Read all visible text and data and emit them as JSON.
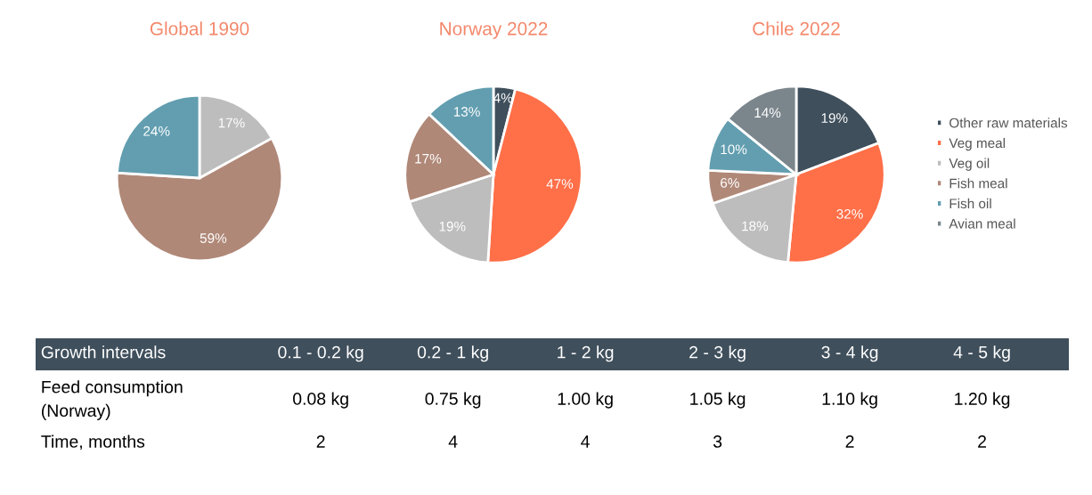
{
  "chart_data": [
    {
      "type": "pie",
      "title": "Global 1990",
      "categories": [
        null,
        null,
        null
      ],
      "values": [
        17,
        59,
        24
      ],
      "colors": [
        "#bdbdbd",
        "#b08878",
        "#629eb0"
      ],
      "value_labels": [
        "17%",
        "59%",
        "24%"
      ]
    },
    {
      "type": "pie",
      "title": "Norway 2022",
      "categories": [
        null,
        null,
        null,
        null,
        null
      ],
      "values": [
        4,
        47,
        19,
        17,
        13
      ],
      "colors": [
        "#3f4f5c",
        "#ff6f48",
        "#bdbdbd",
        "#b08878",
        "#629eb0"
      ],
      "value_labels": [
        "4%",
        "47%",
        "19%",
        "17%",
        "13%"
      ]
    },
    {
      "type": "pie",
      "title": "Chile 2022",
      "categories": [
        "Other raw materials",
        "Veg meal",
        "Veg oil",
        "Fish meal",
        "Fish oil",
        "Avian meal"
      ],
      "values": [
        19,
        32,
        18,
        6,
        10,
        14
      ],
      "colors": [
        "#3f4f5c",
        "#ff6f48",
        "#bdbdbd",
        "#b08878",
        "#629eb0",
        "#7b868c"
      ],
      "value_labels": [
        "19%",
        "32%",
        "18%",
        "6%",
        "10%",
        "14%"
      ],
      "legend": "right"
    },
    {
      "type": "other",
      "annotations": [
        "Growth intervals",
        "0.1 - 0.2 kg",
        "0.2 - 1 kg",
        "1 - 2 kg",
        "2 - 3 kg",
        "3 - 4 kg",
        "4 - 5 kg",
        "Feed consumption\n(Norway)",
        "0.08 kg",
        "0.75 kg",
        "1.00 kg",
        "1.05 kg",
        "1.10 kg",
        "1.20 kg",
        "Time, months",
        "2",
        "4",
        "4",
        "3",
        "2",
        "2"
      ]
    }
  ]
}
